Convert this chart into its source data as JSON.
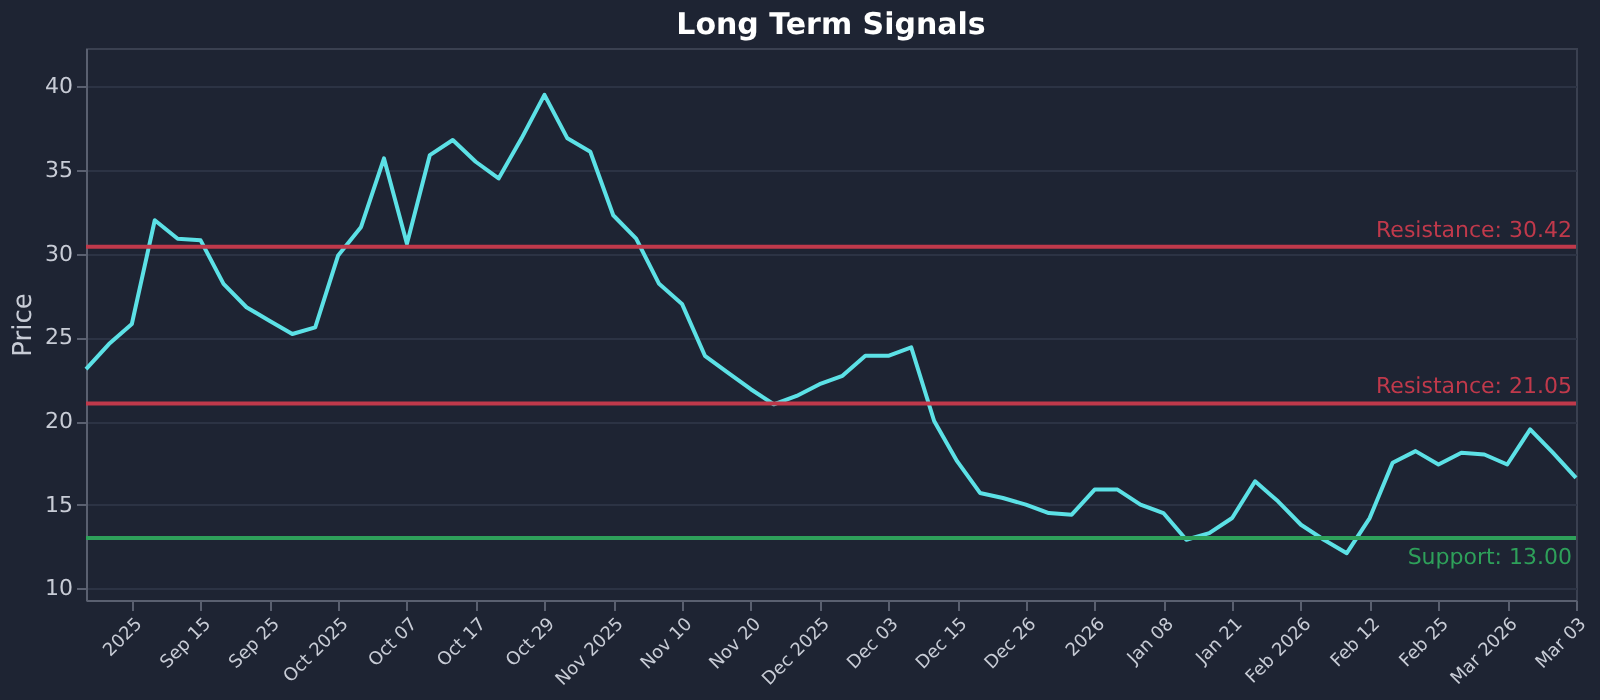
{
  "chart_data": {
    "type": "line",
    "title": "Long Term Signals",
    "ylabel": "Price",
    "categories": [
      null,
      null,
      "2025",
      null,
      null,
      "Sep 15",
      null,
      null,
      "Sep 25",
      null,
      null,
      "Oct 2025",
      null,
      null,
      "Oct 07",
      null,
      null,
      "Oct 17",
      null,
      null,
      "Oct 29",
      null,
      null,
      "Nov 2025",
      null,
      null,
      "Nov 10",
      null,
      null,
      "Nov 20",
      null,
      null,
      "Dec 2025",
      null,
      null,
      "Dec 03",
      null,
      null,
      "Dec 15",
      null,
      null,
      "Dec 26",
      null,
      null,
      "2026",
      null,
      null,
      "Jan 08",
      null,
      null,
      "Jan 21",
      null,
      null,
      "Feb 2026",
      null,
      null,
      "Feb 12",
      null,
      null,
      "Feb 25",
      null,
      null,
      "Mar 2026",
      null,
      null,
      "Mar 03"
    ],
    "series": [
      {
        "color": "#5ce1e6",
        "values": [
          23.1,
          24.6,
          25.8,
          32.0,
          30.9,
          30.8,
          28.2,
          26.8,
          26.0,
          25.2,
          25.6,
          29.9,
          31.6,
          35.7,
          30.6,
          35.9,
          36.8,
          35.5,
          34.5,
          36.9,
          39.5,
          36.9,
          36.1,
          32.3,
          30.9,
          28.2,
          27.0,
          23.9,
          22.9,
          21.9,
          21.0,
          21.5,
          22.2,
          22.7,
          23.9,
          23.9,
          24.4,
          20.0,
          17.6,
          15.7,
          15.4,
          15.0,
          14.5,
          14.4,
          15.9,
          15.9,
          15.0,
          14.5,
          12.9,
          13.3,
          14.2,
          16.4,
          15.2,
          13.8,
          12.9,
          12.1,
          14.2,
          17.5,
          18.2,
          17.4,
          18.1,
          18.0,
          17.4,
          19.5,
          18.1,
          16.6
        ]
      }
    ],
    "ylim": [
      9.3,
      42.3
    ],
    "yticks": [
      10,
      15,
      20,
      25,
      30,
      35,
      40
    ],
    "grid": "y",
    "ref_lines": [
      {
        "axis": "y",
        "value": 30.42,
        "label": "Resistance: 30.42",
        "color": "#c0394b"
      },
      {
        "axis": "y",
        "value": 21.05,
        "label": "Resistance: 21.05",
        "color": "#c0394b"
      },
      {
        "axis": "y",
        "value": 13.0,
        "label": "Support: 13.00",
        "color": "#2ea05a"
      }
    ]
  }
}
